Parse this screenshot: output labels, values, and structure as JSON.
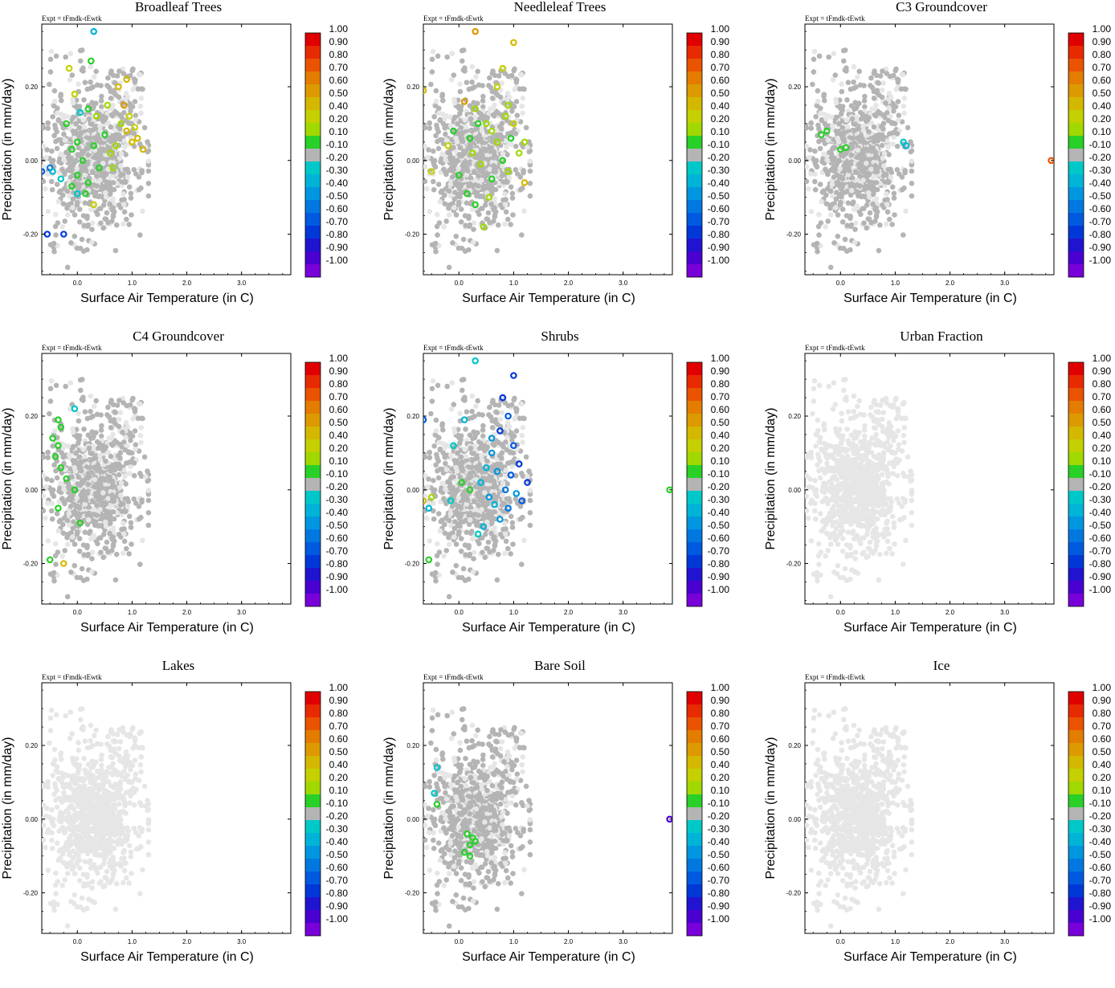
{
  "figure": {
    "experiment_label": "Expt = tFmdk-tEwtk",
    "x_axis_label": "Surface Air Temperature (in C)",
    "y_axis_label": "Precipitation (in mm/day)",
    "x_ticks": [
      "0.0",
      "1.0",
      "2.0",
      "3.0"
    ],
    "y_ticks": [
      "0.20",
      "0.00",
      "-0.20"
    ],
    "colorbar_labels": [
      "1.00",
      "0.90",
      "0.80",
      "0.70",
      "0.60",
      "0.50",
      "0.40",
      "0.20",
      "0.10",
      "-0.10",
      "-0.20",
      "-0.30",
      "-0.40",
      "-0.50",
      "-0.60",
      "-0.70",
      "-0.80",
      "-0.90",
      "-1.00"
    ],
    "colorbar_colors": [
      "#e00000",
      "#e82a00",
      "#ea5300",
      "#e47c00",
      "#dc9a00",
      "#d4b800",
      "#c4d000",
      "#a0d800",
      "#28d028",
      "#b4b4b4",
      "#00c8c8",
      "#00b4d8",
      "#0096e0",
      "#0078e0",
      "#005ae0",
      "#0038d8",
      "#2014d0",
      "#4a00d0",
      "#7800d8"
    ],
    "neutral_color": "#b4b4b4",
    "background_point_color": "#e6e6e6"
  },
  "chart_data": [
    {
      "type": "scatter",
      "title": "Broadleaf Trees",
      "xlim": [
        -0.65,
        3.9
      ],
      "ylim": [
        -0.31,
        0.37
      ],
      "xlabel": "Surface Air Temperature (in C)",
      "ylabel": "Precipitation (in mm/day)",
      "colorbar_range": [
        -1.0,
        1.0
      ],
      "background_style": "gray",
      "highlighted": [
        {
          "x": 0.3,
          "y": 0.35,
          "v": -0.3
        },
        {
          "x": 0.75,
          "y": 0.2,
          "v": 0.5
        },
        {
          "x": 0.85,
          "y": 0.15,
          "v": 0.55
        },
        {
          "x": 0.9,
          "y": 0.08,
          "v": 0.5
        },
        {
          "x": 1.0,
          "y": 0.05,
          "v": 0.45
        },
        {
          "x": 1.1,
          "y": 0.06,
          "v": 0.5
        },
        {
          "x": 1.2,
          "y": 0.03,
          "v": 0.5
        },
        {
          "x": 0.6,
          "y": 0.02,
          "v": 0.3
        },
        {
          "x": 0.5,
          "y": 0.07,
          "v": 0.15
        },
        {
          "x": 0.0,
          "y": 0.05,
          "v": 0.12
        },
        {
          "x": -0.2,
          "y": 0.1,
          "v": 0.15
        },
        {
          "x": -0.15,
          "y": 0.25,
          "v": 0.35
        },
        {
          "x": -0.05,
          "y": 0.18,
          "v": 0.4
        },
        {
          "x": 0.2,
          "y": 0.14,
          "v": 0.15
        },
        {
          "x": 0.35,
          "y": 0.12,
          "v": 0.25
        },
        {
          "x": 0.1,
          "y": 0.0,
          "v": 0.12
        },
        {
          "x": 0.0,
          "y": -0.04,
          "v": 0.12
        },
        {
          "x": -0.1,
          "y": -0.07,
          "v": 0.15
        },
        {
          "x": 0.15,
          "y": -0.09,
          "v": 0.15
        },
        {
          "x": 0.3,
          "y": -0.12,
          "v": 0.35
        },
        {
          "x": 0.2,
          "y": -0.06,
          "v": 0.12
        },
        {
          "x": -0.3,
          "y": -0.05,
          "v": -0.2
        },
        {
          "x": -0.5,
          "y": -0.02,
          "v": -0.5
        },
        {
          "x": -0.45,
          "y": -0.03,
          "v": -0.3
        },
        {
          "x": -0.65,
          "y": -0.03,
          "v": -0.6
        },
        {
          "x": -0.55,
          "y": -0.2,
          "v": -0.7
        },
        {
          "x": -0.25,
          "y": -0.2,
          "v": -0.7
        },
        {
          "x": 0.0,
          "y": -0.09,
          "v": -0.25
        },
        {
          "x": 0.4,
          "y": -0.02,
          "v": 0.15
        },
        {
          "x": 0.7,
          "y": 0.04,
          "v": 0.3
        },
        {
          "x": 0.3,
          "y": 0.04,
          "v": 0.12
        },
        {
          "x": 0.95,
          "y": 0.12,
          "v": 0.4
        },
        {
          "x": 0.9,
          "y": 0.22,
          "v": 0.45
        },
        {
          "x": 0.8,
          "y": 0.1,
          "v": 0.3
        },
        {
          "x": 0.55,
          "y": 0.15,
          "v": 0.2
        },
        {
          "x": 0.25,
          "y": 0.27,
          "v": 0.12
        },
        {
          "x": 0.05,
          "y": 0.13,
          "v": -0.2
        },
        {
          "x": -0.1,
          "y": 0.03,
          "v": 0.12
        },
        {
          "x": 0.65,
          "y": -0.02,
          "v": 0.25
        },
        {
          "x": 1.05,
          "y": 0.09,
          "v": 0.35
        }
      ]
    },
    {
      "type": "scatter",
      "title": "Needleleaf Trees",
      "xlim": [
        -0.65,
        3.9
      ],
      "ylim": [
        -0.31,
        0.37
      ],
      "xlabel": "Surface Air Temperature (in C)",
      "ylabel": "Precipitation (in mm/day)",
      "colorbar_range": [
        -1.0,
        1.0
      ],
      "background_style": "gray",
      "highlighted": [
        {
          "x": 0.3,
          "y": 0.35,
          "v": 0.55
        },
        {
          "x": 1.0,
          "y": 0.32,
          "v": 0.45
        },
        {
          "x": 0.8,
          "y": 0.25,
          "v": 0.4
        },
        {
          "x": 0.7,
          "y": 0.2,
          "v": 0.35
        },
        {
          "x": 0.9,
          "y": 0.15,
          "v": 0.3
        },
        {
          "x": 1.0,
          "y": 0.1,
          "v": 0.35
        },
        {
          "x": 1.2,
          "y": 0.05,
          "v": 0.3
        },
        {
          "x": 1.1,
          "y": 0.02,
          "v": 0.25
        },
        {
          "x": 0.9,
          "y": -0.03,
          "v": 0.3
        },
        {
          "x": 1.2,
          "y": -0.06,
          "v": 0.45
        },
        {
          "x": 0.6,
          "y": -0.05,
          "v": 0.15
        },
        {
          "x": 0.4,
          "y": -0.01,
          "v": 0.2
        },
        {
          "x": 0.2,
          "y": 0.06,
          "v": 0.15
        },
        {
          "x": 0.5,
          "y": 0.1,
          "v": 0.25
        },
        {
          "x": 0.3,
          "y": 0.14,
          "v": 0.2
        },
        {
          "x": 0.1,
          "y": 0.16,
          "v": 0.55
        },
        {
          "x": -0.1,
          "y": 0.08,
          "v": 0.15
        },
        {
          "x": 0.0,
          "y": -0.04,
          "v": 0.12
        },
        {
          "x": 0.15,
          "y": -0.09,
          "v": 0.12
        },
        {
          "x": 0.3,
          "y": -0.12,
          "v": 0.15
        },
        {
          "x": 0.45,
          "y": -0.18,
          "v": 0.25
        },
        {
          "x": -0.2,
          "y": 0.04,
          "v": 0.35
        },
        {
          "x": -0.5,
          "y": -0.03,
          "v": 0.4
        },
        {
          "x": -0.65,
          "y": 0.19,
          "v": 0.45
        },
        {
          "x": 0.7,
          "y": 0.05,
          "v": 0.2
        },
        {
          "x": 0.8,
          "y": 0.0,
          "v": 0.12
        },
        {
          "x": 0.6,
          "y": 0.08,
          "v": 0.3
        },
        {
          "x": 0.95,
          "y": 0.06,
          "v": 0.15
        },
        {
          "x": 0.25,
          "y": 0.02,
          "v": 0.25
        },
        {
          "x": 0.55,
          "y": -0.1,
          "v": 0.3
        },
        {
          "x": 0.85,
          "y": 0.12,
          "v": 0.2
        },
        {
          "x": 0.35,
          "y": 0.1,
          "v": 0.12
        }
      ]
    },
    {
      "type": "scatter",
      "title": "C3 Groundcover",
      "xlim": [
        -0.65,
        3.9
      ],
      "ylim": [
        -0.31,
        0.37
      ],
      "xlabel": "Surface Air Temperature (in C)",
      "ylabel": "Precipitation (in mm/day)",
      "colorbar_range": [
        -1.0,
        1.0
      ],
      "background_style": "gray",
      "highlighted": [
        {
          "x": -0.35,
          "y": 0.07,
          "v": 0.15
        },
        {
          "x": -0.25,
          "y": 0.08,
          "v": 0.12
        },
        {
          "x": 0.0,
          "y": 0.03,
          "v": 0.15
        },
        {
          "x": 0.1,
          "y": 0.035,
          "v": 0.12
        },
        {
          "x": 1.15,
          "y": 0.05,
          "v": -0.25
        },
        {
          "x": 1.2,
          "y": 0.04,
          "v": -0.3
        },
        {
          "x": 3.85,
          "y": 0.0,
          "v": 0.75
        }
      ]
    },
    {
      "type": "scatter",
      "title": "C4 Groundcover",
      "xlim": [
        -0.65,
        3.9
      ],
      "ylim": [
        -0.31,
        0.37
      ],
      "xlabel": "Surface Air Temperature (in C)",
      "ylabel": "Precipitation (in mm/day)",
      "colorbar_range": [
        -1.0,
        1.0
      ],
      "background_style": "gray",
      "highlighted": [
        {
          "x": -0.05,
          "y": 0.22,
          "v": -0.25
        },
        {
          "x": -0.35,
          "y": 0.19,
          "v": 0.15
        },
        {
          "x": -0.3,
          "y": 0.17,
          "v": 0.12
        },
        {
          "x": -0.45,
          "y": 0.14,
          "v": 0.15
        },
        {
          "x": -0.35,
          "y": 0.12,
          "v": 0.15
        },
        {
          "x": -0.4,
          "y": 0.09,
          "v": 0.12
        },
        {
          "x": -0.3,
          "y": 0.06,
          "v": 0.15
        },
        {
          "x": -0.2,
          "y": 0.03,
          "v": 0.12
        },
        {
          "x": -0.05,
          "y": 0.0,
          "v": 0.15
        },
        {
          "x": -0.35,
          "y": -0.05,
          "v": 0.15
        },
        {
          "x": -0.5,
          "y": -0.19,
          "v": 0.15
        },
        {
          "x": -0.25,
          "y": -0.2,
          "v": 0.5
        },
        {
          "x": 0.05,
          "y": -0.09,
          "v": 0.15
        }
      ]
    },
    {
      "type": "scatter",
      "title": "Shrubs",
      "xlim": [
        -0.65,
        3.9
      ],
      "ylim": [
        -0.31,
        0.37
      ],
      "xlabel": "Surface Air Temperature (in C)",
      "ylabel": "Precipitation (in mm/day)",
      "colorbar_range": [
        -1.0,
        1.0
      ],
      "background_style": "gray",
      "highlighted": [
        {
          "x": 1.0,
          "y": 0.31,
          "v": -0.7
        },
        {
          "x": 0.8,
          "y": 0.25,
          "v": -0.65
        },
        {
          "x": 0.9,
          "y": 0.2,
          "v": -0.6
        },
        {
          "x": 0.75,
          "y": 0.16,
          "v": -0.7
        },
        {
          "x": 1.0,
          "y": 0.12,
          "v": -0.55
        },
        {
          "x": 1.1,
          "y": 0.07,
          "v": -0.7
        },
        {
          "x": 1.25,
          "y": 0.02,
          "v": -0.65
        },
        {
          "x": 1.15,
          "y": -0.03,
          "v": -0.6
        },
        {
          "x": 0.9,
          "y": -0.05,
          "v": -0.5
        },
        {
          "x": 0.7,
          "y": 0.05,
          "v": -0.45
        },
        {
          "x": 0.6,
          "y": 0.1,
          "v": -0.4
        },
        {
          "x": 0.5,
          "y": 0.06,
          "v": -0.35
        },
        {
          "x": 0.4,
          "y": 0.02,
          "v": -0.3
        },
        {
          "x": 0.55,
          "y": -0.02,
          "v": -0.4
        },
        {
          "x": 0.75,
          "y": -0.08,
          "v": -0.45
        },
        {
          "x": 0.85,
          "y": 0.0,
          "v": -0.5
        },
        {
          "x": 0.65,
          "y": -0.04,
          "v": -0.35
        },
        {
          "x": 0.3,
          "y": 0.35,
          "v": -0.25
        },
        {
          "x": 0.1,
          "y": 0.19,
          "v": -0.3
        },
        {
          "x": -0.1,
          "y": 0.12,
          "v": -0.25
        },
        {
          "x": 0.05,
          "y": 0.02,
          "v": 0.12
        },
        {
          "x": -0.15,
          "y": -0.03,
          "v": -0.25
        },
        {
          "x": 0.2,
          "y": 0.0,
          "v": 0.15
        },
        {
          "x": -0.5,
          "y": -0.02,
          "v": 0.3
        },
        {
          "x": -0.65,
          "y": -0.03,
          "v": 0.45
        },
        {
          "x": -0.55,
          "y": -0.05,
          "v": -0.3
        },
        {
          "x": -0.55,
          "y": -0.19,
          "v": 0.15
        },
        {
          "x": -0.65,
          "y": 0.19,
          "v": -0.6
        },
        {
          "x": 0.35,
          "y": -0.12,
          "v": -0.25
        },
        {
          "x": 0.45,
          "y": -0.1,
          "v": -0.3
        },
        {
          "x": 0.95,
          "y": 0.04,
          "v": -0.6
        },
        {
          "x": 1.05,
          "y": -0.01,
          "v": -0.45
        },
        {
          "x": 0.6,
          "y": 0.14,
          "v": -0.45
        },
        {
          "x": 3.85,
          "y": 0.0,
          "v": 0.12
        }
      ]
    },
    {
      "type": "scatter",
      "title": "Urban Fraction",
      "xlim": [
        -0.65,
        3.9
      ],
      "ylim": [
        -0.31,
        0.37
      ],
      "xlabel": "Surface Air Temperature (in C)",
      "ylabel": "Precipitation (in mm/day)",
      "colorbar_range": [
        -1.0,
        1.0
      ],
      "background_style": "light",
      "highlighted": []
    },
    {
      "type": "scatter",
      "title": "Lakes",
      "xlim": [
        -0.65,
        3.9
      ],
      "ylim": [
        -0.31,
        0.37
      ],
      "xlabel": "Surface Air Temperature (in C)",
      "ylabel": "Precipitation (in mm/day)",
      "colorbar_range": [
        -1.0,
        1.0
      ],
      "background_style": "light",
      "highlighted": []
    },
    {
      "type": "scatter",
      "title": "Bare Soil",
      "xlim": [
        -0.65,
        3.9
      ],
      "ylim": [
        -0.31,
        0.37
      ],
      "xlabel": "Surface Air Temperature (in C)",
      "ylabel": "Precipitation (in mm/day)",
      "colorbar_range": [
        -1.0,
        1.0
      ],
      "background_style": "gray",
      "highlighted": [
        {
          "x": -0.4,
          "y": 0.14,
          "v": -0.25
        },
        {
          "x": -0.45,
          "y": 0.07,
          "v": -0.25
        },
        {
          "x": -0.4,
          "y": 0.04,
          "v": 0.12
        },
        {
          "x": 0.15,
          "y": -0.04,
          "v": 0.15
        },
        {
          "x": 0.25,
          "y": -0.05,
          "v": 0.15
        },
        {
          "x": 0.2,
          "y": -0.07,
          "v": 0.15
        },
        {
          "x": 0.3,
          "y": -0.06,
          "v": 0.15
        },
        {
          "x": 0.1,
          "y": -0.09,
          "v": 0.15
        },
        {
          "x": 0.2,
          "y": -0.1,
          "v": 0.15
        },
        {
          "x": 3.85,
          "y": 0.0,
          "v": -0.9
        }
      ]
    },
    {
      "type": "scatter",
      "title": "Ice",
      "xlim": [
        -0.65,
        3.9
      ],
      "ylim": [
        -0.31,
        0.37
      ],
      "xlabel": "Surface Air Temperature (in C)",
      "ylabel": "Precipitation (in mm/day)",
      "colorbar_range": [
        -1.0,
        1.0
      ],
      "background_style": "light",
      "highlighted": []
    }
  ]
}
